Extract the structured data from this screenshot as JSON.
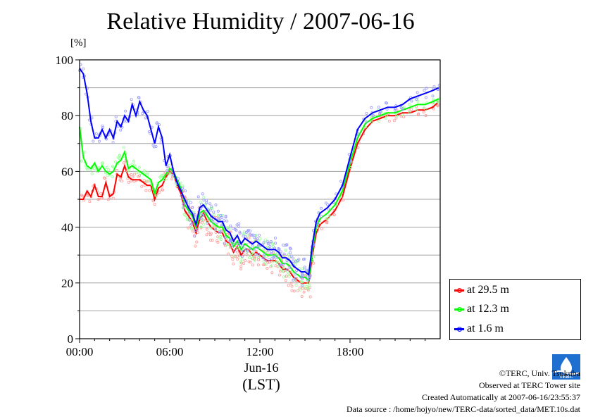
{
  "title": "Relative Humidity / 2007-06-16",
  "unit": "[%]",
  "x_date_label": "Jun-16",
  "x_axis_label": "(LST)",
  "footer": {
    "copyright": "©TERC, Univ. Tsukuba",
    "observed": "Observed at TERC Tower site",
    "created": "Created Automatically at 2007-06-16/23:55:37",
    "source": "Data source : /home/hojyo/new/TERC-data/sorted_data/MET.10s.dat"
  },
  "logo_text": "TERC",
  "chart_data": {
    "type": "line",
    "title": "Relative Humidity / 2007-06-16",
    "xlabel": "(LST)",
    "ylabel": "[%]",
    "xlim": [
      0,
      24
    ],
    "ylim": [
      0,
      100
    ],
    "x_ticks": [
      0,
      6,
      12,
      18
    ],
    "x_tick_labels": [
      "00:00",
      "06:00",
      "12:00",
      "18:00"
    ],
    "y_ticks": [
      0,
      20,
      40,
      60,
      80,
      100
    ],
    "y_tick_labels": [
      "0",
      "20",
      "40",
      "60",
      "80",
      "100"
    ],
    "grid": true,
    "legend_position": "bottom-right-outside",
    "x": [
      0.0,
      0.25,
      0.5,
      0.75,
      1.0,
      1.25,
      1.5,
      1.75,
      2.0,
      2.25,
      2.5,
      2.75,
      3.0,
      3.25,
      3.5,
      3.75,
      4.0,
      4.25,
      4.5,
      4.75,
      5.0,
      5.25,
      5.5,
      5.75,
      6.0,
      6.25,
      6.5,
      6.75,
      7.0,
      7.25,
      7.5,
      7.75,
      8.0,
      8.25,
      8.5,
      8.75,
      9.0,
      9.25,
      9.5,
      9.75,
      10.0,
      10.25,
      10.5,
      10.75,
      11.0,
      11.25,
      11.5,
      11.75,
      12.0,
      12.25,
      12.5,
      12.75,
      13.0,
      13.25,
      13.5,
      13.75,
      14.0,
      14.25,
      14.5,
      14.75,
      15.0,
      15.25,
      15.5,
      15.75,
      16.0,
      16.5,
      17.0,
      17.5,
      18.0,
      18.5,
      19.0,
      19.5,
      20.0,
      20.5,
      21.0,
      21.5,
      22.0,
      22.5,
      23.0,
      23.5,
      23.9
    ],
    "series": [
      {
        "name": "at 29.5 m",
        "color": "#ff0000",
        "values": [
          50,
          50,
          53,
          51,
          55,
          51,
          51,
          56,
          51,
          52,
          59,
          58,
          62,
          58,
          57,
          57,
          57,
          56,
          55,
          55,
          50,
          54,
          55,
          58,
          60,
          59,
          55,
          52,
          46,
          44,
          42,
          38,
          43,
          45,
          42,
          40,
          39,
          38,
          38,
          35,
          34,
          31,
          33,
          30,
          32,
          32,
          30,
          31,
          30,
          29,
          28,
          28,
          28,
          27,
          25,
          25,
          24,
          22,
          21,
          20,
          20,
          20,
          30,
          38,
          41,
          43,
          46,
          51,
          61,
          70,
          75,
          78,
          79,
          80,
          80,
          81,
          81,
          82,
          82,
          83,
          85
        ]
      },
      {
        "name": "at 12.3 m",
        "color": "#00ff00",
        "values": [
          76,
          65,
          62,
          61,
          63,
          60,
          62,
          60,
          59,
          60,
          63,
          64,
          67,
          61,
          62,
          61,
          60,
          59,
          58,
          57,
          52,
          56,
          57,
          59,
          61,
          60,
          57,
          54,
          48,
          46,
          44,
          40,
          45,
          46,
          44,
          42,
          41,
          40,
          40,
          37,
          36,
          33,
          35,
          32,
          34,
          33,
          32,
          33,
          32,
          31,
          30,
          30,
          30,
          29,
          27,
          27,
          26,
          24,
          23,
          22,
          22,
          21,
          32,
          40,
          43,
          45,
          48,
          53,
          63,
          72,
          77,
          79,
          80,
          81,
          81,
          82,
          83,
          84,
          84,
          85,
          86
        ]
      },
      {
        "name": "at 1.6 m",
        "color": "#0000ff",
        "values": [
          97,
          95,
          88,
          78,
          72,
          72,
          75,
          72,
          75,
          72,
          78,
          76,
          80,
          78,
          84,
          80,
          85,
          82,
          80,
          75,
          70,
          76,
          72,
          62,
          66,
          60,
          56,
          53,
          50,
          47,
          45,
          41,
          47,
          48,
          46,
          44,
          43,
          42,
          42,
          39,
          38,
          35,
          37,
          34,
          36,
          35,
          34,
          35,
          34,
          33,
          32,
          32,
          32,
          31,
          29,
          29,
          28,
          26,
          25,
          24,
          24,
          23,
          34,
          42,
          45,
          47,
          50,
          55,
          65,
          75,
          79,
          81,
          82,
          83,
          83,
          84,
          86,
          87,
          88,
          89,
          90
        ]
      }
    ]
  }
}
